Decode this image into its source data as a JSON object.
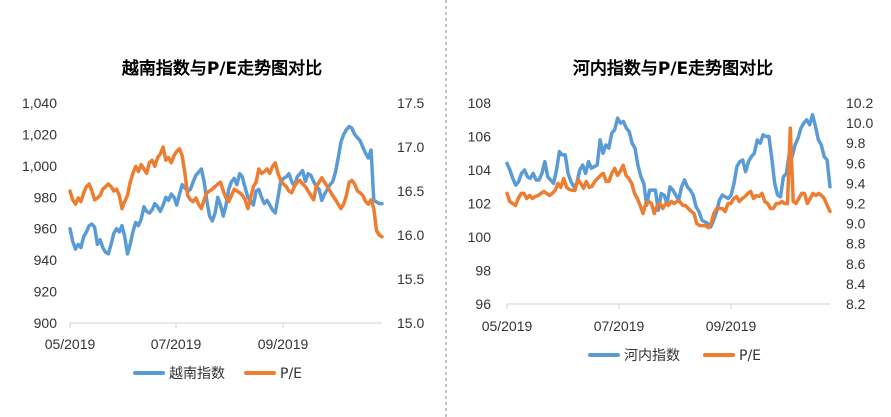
{
  "colors": {
    "blue": "#5B9BD5",
    "orange": "#ED7D31"
  },
  "chart_data": [
    {
      "type": "line",
      "title": "越南指数与P/E走势图对比",
      "x_tick_labels": [
        "05/2019",
        "07/2019",
        "09/2019"
      ],
      "left_axis": {
        "ylim": [
          900,
          1040
        ],
        "ticks": [
          "900",
          "920",
          "940",
          "960",
          "980",
          "1,000",
          "1,020",
          "1,040"
        ]
      },
      "right_axis": {
        "ylim": [
          15.0,
          17.5
        ],
        "ticks": [
          "15.0",
          "15.5",
          "16.0",
          "16.5",
          "17.0",
          "17.5"
        ]
      },
      "series": [
        {
          "name": "越南指数",
          "axis": "left",
          "color": "#5B9BD5",
          "values": [
            960,
            952,
            947,
            950,
            948,
            955,
            958,
            962,
            963,
            961,
            950,
            953,
            948,
            945,
            944,
            950,
            957,
            960,
            958,
            962,
            955,
            944,
            950,
            958,
            964,
            962,
            966,
            974,
            971,
            970,
            972,
            976,
            974,
            971,
            975,
            980,
            978,
            982,
            980,
            975,
            982,
            988,
            986,
            984,
            985,
            990,
            994,
            996,
            998,
            990,
            978,
            968,
            965,
            970,
            980,
            975,
            968,
            975,
            985,
            990,
            992,
            988,
            995,
            993,
            986,
            980,
            978,
            975,
            984,
            985,
            980,
            976,
            978,
            975,
            972,
            970,
            980,
            990,
            992,
            993,
            995,
            990,
            987,
            993,
            995,
            997,
            990,
            995,
            994,
            990,
            987,
            985,
            978,
            982,
            985,
            988,
            990,
            996,
            1005,
            1015,
            1020,
            1023,
            1025,
            1024,
            1020,
            1018,
            1016,
            1012,
            1008,
            1005,
            1010,
            978,
            977,
            976,
            976
          ]
        },
        {
          "name": "P/E",
          "axis": "right",
          "color": "#ED7D31",
          "values": [
            16.5,
            16.4,
            16.35,
            16.42,
            16.38,
            16.48,
            16.55,
            16.58,
            16.5,
            16.4,
            16.42,
            16.45,
            16.52,
            16.55,
            16.58,
            16.55,
            16.5,
            16.52,
            16.45,
            16.3,
            16.38,
            16.45,
            16.6,
            16.7,
            16.78,
            16.72,
            16.8,
            16.75,
            16.7,
            16.82,
            16.85,
            16.78,
            16.88,
            16.92,
            17.0,
            16.85,
            16.88,
            16.82,
            16.9,
            16.95,
            16.98,
            16.9,
            16.7,
            16.45,
            16.4,
            16.38,
            16.42,
            16.35,
            16.3,
            16.4,
            16.48,
            16.5,
            16.52,
            16.55,
            16.58,
            16.6,
            16.5,
            16.42,
            16.38,
            16.45,
            16.52,
            16.5,
            16.48,
            16.45,
            16.4,
            16.3,
            16.42,
            16.55,
            16.6,
            16.75,
            16.7,
            16.72,
            16.75,
            16.7,
            16.78,
            16.82,
            16.7,
            16.62,
            16.58,
            16.55,
            16.5,
            16.48,
            16.55,
            16.6,
            16.62,
            16.58,
            16.55,
            16.5,
            16.45,
            16.4,
            16.55,
            16.6,
            16.65,
            16.6,
            16.55,
            16.5,
            16.45,
            16.4,
            16.35,
            16.3,
            16.35,
            16.45,
            16.6,
            16.62,
            16.58,
            16.5,
            16.48,
            16.45,
            16.38,
            16.35,
            16.4,
            16.3,
            16.05,
            16.0,
            15.98
          ]
        }
      ],
      "legend": [
        "越南指数",
        "P/E"
      ],
      "legend_position": "bottom"
    },
    {
      "type": "line",
      "title": "河内指数与P/E走势图对比",
      "x_tick_labels": [
        "05/2019",
        "07/2019",
        "09/2019"
      ],
      "left_axis": {
        "ylim": [
          96,
          108
        ],
        "ticks": [
          "96",
          "98",
          "100",
          "102",
          "104",
          "106",
          "108"
        ]
      },
      "right_axis": {
        "ylim": [
          8.2,
          10.2
        ],
        "ticks": [
          "8.2",
          "8.4",
          "8.6",
          "8.8",
          "9.0",
          "9.2",
          "9.4",
          "9.6",
          "9.8",
          "10.0",
          "10.2"
        ]
      },
      "series": [
        {
          "name": "河内指数",
          "axis": "left",
          "color": "#5B9BD5",
          "values": [
            104.4,
            104.0,
            103.5,
            103.1,
            103.3,
            103.8,
            104.0,
            103.6,
            103.5,
            103.8,
            103.4,
            103.4,
            103.8,
            104.5,
            103.6,
            103.4,
            103.2,
            104.0,
            105.1,
            104.9,
            104.9,
            103.8,
            103.3,
            103.0,
            103.2,
            104.0,
            104.3,
            103.8,
            104.5,
            104.1,
            104.2,
            104.3,
            105.8,
            105.0,
            105.5,
            105.3,
            106.2,
            106.4,
            107.1,
            106.8,
            106.9,
            106.5,
            106.3,
            105.6,
            105.3,
            104.3,
            103.6,
            103.2,
            101.9,
            102.8,
            102.8,
            102.8,
            101.6,
            102.6,
            102.5,
            102.0,
            103.0,
            102.8,
            102.5,
            102.2,
            103.0,
            103.4,
            103.0,
            102.8,
            102.5,
            101.8,
            101.5,
            101.0,
            100.9,
            100.8,
            100.6,
            101.0,
            101.5,
            102.2,
            102.5,
            102.4,
            102.3,
            102.5,
            103.2,
            104.2,
            104.5,
            104.6,
            103.9,
            104.5,
            104.8,
            105.0,
            105.8,
            105.6,
            106.1,
            106.0,
            106.0,
            104.7,
            103.2,
            102.5,
            102.4,
            103.6,
            103.8,
            105.0,
            104.8,
            105.5,
            105.9,
            106.5,
            106.8,
            107.0,
            106.7,
            107.3,
            106.6,
            105.8,
            105.5,
            104.8,
            104.6,
            103.0
          ]
        },
        {
          "name": "P/E",
          "axis": "right",
          "color": "#ED7D31",
          "values": [
            9.3,
            9.22,
            9.2,
            9.18,
            9.25,
            9.3,
            9.3,
            9.25,
            9.28,
            9.25,
            9.27,
            9.28,
            9.3,
            9.32,
            9.3,
            9.28,
            9.3,
            9.33,
            9.4,
            9.36,
            9.45,
            9.36,
            9.34,
            9.33,
            9.33,
            9.44,
            9.4,
            9.35,
            9.42,
            9.36,
            9.37,
            9.42,
            9.45,
            9.48,
            9.5,
            9.42,
            9.42,
            9.5,
            9.55,
            9.48,
            9.52,
            9.58,
            9.48,
            9.45,
            9.4,
            9.3,
            9.25,
            9.18,
            9.1,
            9.2,
            9.22,
            9.2,
            9.1,
            9.18,
            9.2,
            9.15,
            9.2,
            9.18,
            9.22,
            9.2,
            9.22,
            9.22,
            9.18,
            9.18,
            9.15,
            9.12,
            9.1,
            9.0,
            8.98,
            8.98,
            8.98,
            8.96,
            9.0,
            9.1,
            9.15,
            9.15,
            9.15,
            9.12,
            9.2,
            9.2,
            9.25,
            9.27,
            9.22,
            9.25,
            9.27,
            9.3,
            9.32,
            9.25,
            9.28,
            9.27,
            9.3,
            9.22,
            9.2,
            9.15,
            9.15,
            9.2,
            9.2,
            9.22,
            9.2,
            9.2,
            9.95,
            9.22,
            9.2,
            9.25,
            9.3,
            9.3,
            9.2,
            9.25,
            9.3,
            9.28,
            9.3,
            9.28,
            9.25,
            9.18,
            9.12
          ]
        }
      ],
      "legend": [
        "河内指数",
        "P/E"
      ],
      "legend_position": "bottom"
    }
  ]
}
